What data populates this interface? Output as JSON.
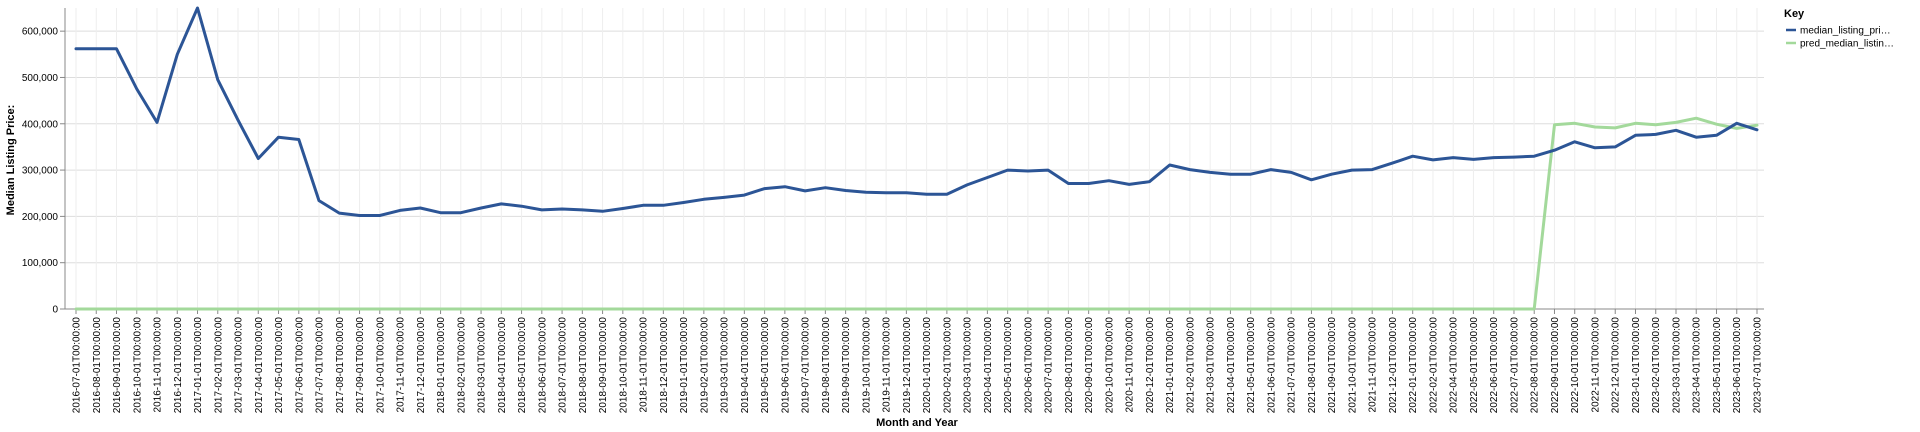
{
  "chart_data": {
    "type": "line",
    "xlabel": "Month and Year",
    "ylabel": "Median Listing Price:",
    "ylim": [
      0,
      650000
    ],
    "yticks": [
      0,
      100000,
      200000,
      300000,
      400000,
      500000,
      600000
    ],
    "ytick_labels": [
      "0",
      "100,000",
      "200,000",
      "300,000",
      "400,000",
      "500,000",
      "600,000"
    ],
    "grid": true,
    "legend_title": "Key",
    "legend_position": "top-right",
    "categories": [
      "2016-07-01T00:00:00",
      "2016-08-01T00:00:00",
      "2016-09-01T00:00:00",
      "2016-10-01T00:00:00",
      "2016-11-01T00:00:00",
      "2016-12-01T00:00:00",
      "2017-01-01T00:00:00",
      "2017-02-01T00:00:00",
      "2017-03-01T00:00:00",
      "2017-04-01T00:00:00",
      "2017-05-01T00:00:00",
      "2017-06-01T00:00:00",
      "2017-07-01T00:00:00",
      "2017-08-01T00:00:00",
      "2017-09-01T00:00:00",
      "2017-10-01T00:00:00",
      "2017-11-01T00:00:00",
      "2017-12-01T00:00:00",
      "2018-01-01T00:00:00",
      "2018-02-01T00:00:00",
      "2018-03-01T00:00:00",
      "2018-04-01T00:00:00",
      "2018-05-01T00:00:00",
      "2018-06-01T00:00:00",
      "2018-07-01T00:00:00",
      "2018-08-01T00:00:00",
      "2018-09-01T00:00:00",
      "2018-10-01T00:00:00",
      "2018-11-01T00:00:00",
      "2018-12-01T00:00:00",
      "2019-01-01T00:00:00",
      "2019-02-01T00:00:00",
      "2019-03-01T00:00:00",
      "2019-04-01T00:00:00",
      "2019-05-01T00:00:00",
      "2019-06-01T00:00:00",
      "2019-07-01T00:00:00",
      "2019-08-01T00:00:00",
      "2019-09-01T00:00:00",
      "2019-10-01T00:00:00",
      "2019-11-01T00:00:00",
      "2019-12-01T00:00:00",
      "2020-01-01T00:00:00",
      "2020-02-01T00:00:00",
      "2020-03-01T00:00:00",
      "2020-04-01T00:00:00",
      "2020-05-01T00:00:00",
      "2020-06-01T00:00:00",
      "2020-07-01T00:00:00",
      "2020-08-01T00:00:00",
      "2020-09-01T00:00:00",
      "2020-10-01T00:00:00",
      "2020-11-01T00:00:00",
      "2020-12-01T00:00:00",
      "2021-01-01T00:00:00",
      "2021-02-01T00:00:00",
      "2021-03-01T00:00:00",
      "2021-04-01T00:00:00",
      "2021-05-01T00:00:00",
      "2021-06-01T00:00:00",
      "2021-07-01T00:00:00",
      "2021-08-01T00:00:00",
      "2021-09-01T00:00:00",
      "2021-10-01T00:00:00",
      "2021-11-01T00:00:00",
      "2021-12-01T00:00:00",
      "2022-01-01T00:00:00",
      "2022-02-01T00:00:00",
      "2022-04-01T00:00:00",
      "2022-05-01T00:00:00",
      "2022-06-01T00:00:00",
      "2022-07-01T00:00:00",
      "2022-08-01T00:00:00",
      "2022-09-01T00:00:00",
      "2022-10-01T00:00:00",
      "2022-11-01T00:00:00",
      "2022-12-01T00:00:00",
      "2023-01-01T00:00:00",
      "2023-02-01T00:00:00",
      "2023-03-01T00:00:00",
      "2023-04-01T00:00:00",
      "2023-05-01T00:00:00",
      "2023-06-01T00:00:00",
      "2023-07-01T00:00:00"
    ],
    "series": [
      {
        "name": "median_listing_pri…",
        "color": "#2c5596",
        "values": [
          562000,
          562000,
          562000,
          475000,
          403000,
          550000,
          650000,
          495000,
          408000,
          325000,
          371000,
          366000,
          234000,
          207000,
          202000,
          202000,
          213000,
          218000,
          208000,
          208000,
          218000,
          227000,
          222000,
          214000,
          216000,
          214000,
          211000,
          217000,
          224000,
          224000,
          230000,
          237000,
          241000,
          246000,
          260000,
          264000,
          255000,
          262000,
          256000,
          252000,
          251000,
          251000,
          248000,
          248000,
          268000,
          284000,
          300000,
          298000,
          300000,
          271000,
          271000,
          277000,
          269000,
          275000,
          311000,
          301000,
          295000,
          291000,
          291000,
          301000,
          295000,
          279000,
          291000,
          300000,
          301000,
          315000,
          330000,
          322000,
          327000,
          323000,
          327000,
          328000,
          330000,
          343000,
          361000,
          348000,
          350000,
          375000,
          377000,
          386000,
          371000,
          375000,
          401000,
          387000
        ]
      },
      {
        "name": "pred_median_listin…",
        "color": "#a3d99b",
        "values": [
          0,
          0,
          0,
          0,
          0,
          0,
          0,
          0,
          0,
          0,
          0,
          0,
          0,
          0,
          0,
          0,
          0,
          0,
          0,
          0,
          0,
          0,
          0,
          0,
          0,
          0,
          0,
          0,
          0,
          0,
          0,
          0,
          0,
          0,
          0,
          0,
          0,
          0,
          0,
          0,
          0,
          0,
          0,
          0,
          0,
          0,
          0,
          0,
          0,
          0,
          0,
          0,
          0,
          0,
          0,
          0,
          0,
          0,
          0,
          0,
          0,
          0,
          0,
          0,
          0,
          0,
          0,
          0,
          0,
          0,
          0,
          0,
          0,
          398000,
          401000,
          393000,
          391000,
          401000,
          398000,
          403000,
          412000,
          399000,
          390000,
          397000
        ]
      }
    ]
  }
}
